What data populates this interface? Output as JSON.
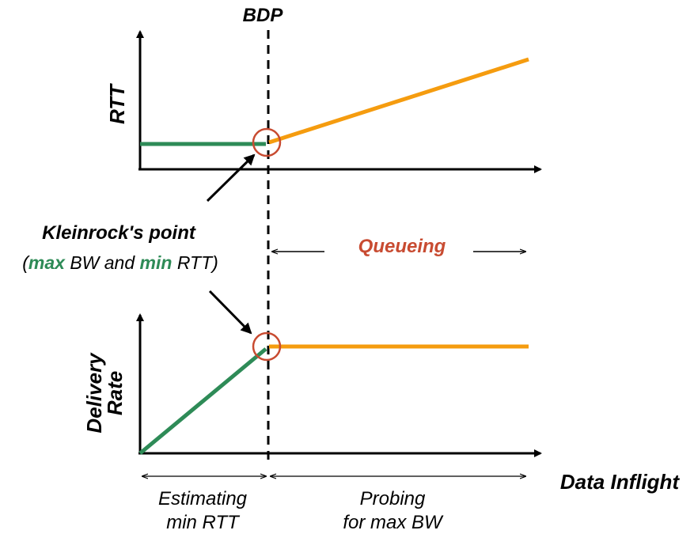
{
  "labels": {
    "bdp": "BDP",
    "rtt_axis": "RTT",
    "delivery_axis_line1": "Delivery",
    "delivery_axis_line2": "Rate",
    "x_axis": "Data Inflight",
    "kleinrock_title": "Kleinrock's point",
    "kleinrock_open": "(",
    "kleinrock_max": "max",
    "kleinrock_mid": " BW and ",
    "kleinrock_min": "min",
    "kleinrock_close": " RTT)",
    "queueing": "Queueing",
    "estimating_line1": "Estimating",
    "estimating_line2": "min RTT",
    "probing_line1": "Probing",
    "probing_line2": "for max BW"
  },
  "colors": {
    "green": "#2e8b57",
    "orange": "#f59c0f",
    "red": "#c84b31",
    "black": "#000000"
  }
}
